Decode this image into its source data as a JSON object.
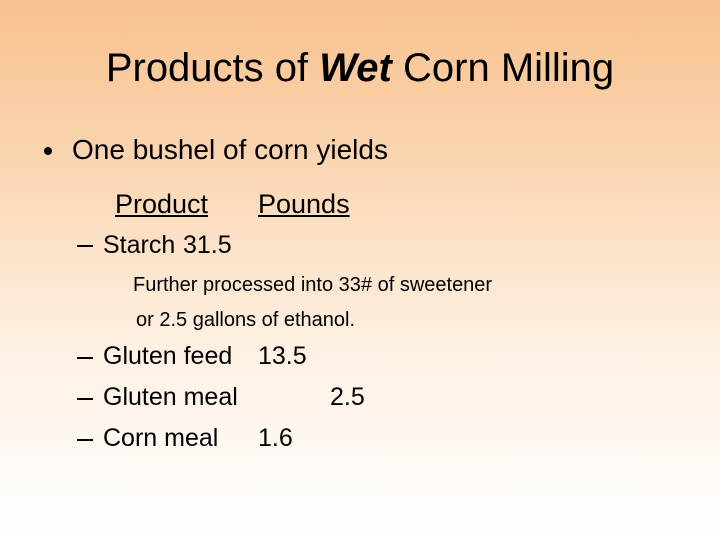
{
  "slide": {
    "title": [
      "Products of",
      "Wet",
      "Corn Milling"
    ],
    "bullet": "One bushel of corn yields",
    "header": {
      "product": "Product",
      "pounds": "Pounds"
    },
    "items": [
      {
        "name": "Starch",
        "pounds": 31.5,
        "note": [
          "Further processed into 33# of sweetener",
          "or 2.5 gallons of ethanol."
        ]
      },
      {
        "name": "Gluten feed",
        "pounds": 13.5
      },
      {
        "name": "Gluten meal",
        "pounds": 2.5
      },
      {
        "name": "Corn meal",
        "pounds": 1.6
      }
    ]
  }
}
